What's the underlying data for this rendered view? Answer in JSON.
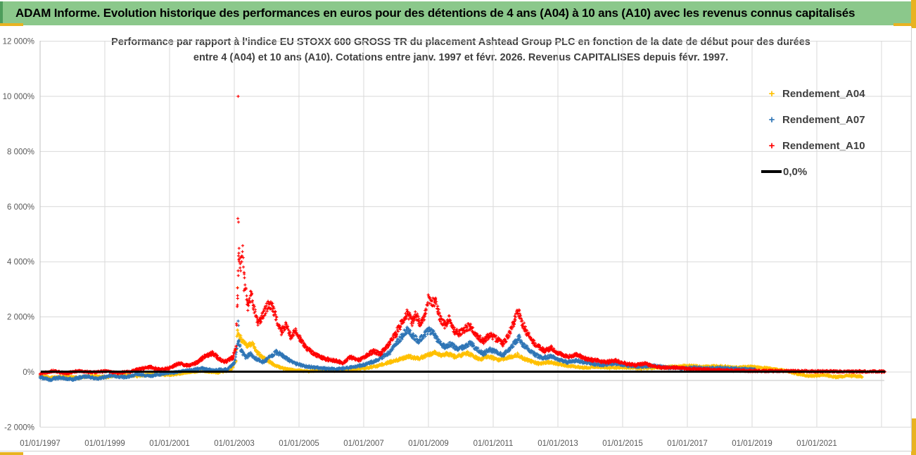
{
  "banner": {
    "text": "ADAM Informe. Evolution historique des performances en euros pour des détentions de 4 ans (A04) à 10 ans (A10) avec les revenus connus capitalisés"
  },
  "chart": {
    "title_line1": "Performance par rapport à l'indice EU STOXX 600 GROSS TR  du placement Ashtead Group PLC en fonction de la date de début pour des durées",
    "title_line2": "entre 4 (A04) et 10 ans (A10).  Cotations entre janv. 1997 et févr. 2026. Revenus CAPITALISES depuis févr. 1997.",
    "legend": {
      "items": [
        {
          "label": "Rendement_A04",
          "color": "#FFC000",
          "marker": "plus"
        },
        {
          "label": "Rendement_A07",
          "color": "#2E75B6",
          "marker": "plus"
        },
        {
          "label": "Rendement_A10",
          "color": "#FF0000",
          "marker": "plus"
        },
        {
          "label": "0,0%",
          "color": "#000000",
          "marker": "line"
        }
      ]
    },
    "colors": {
      "gridline": "#D9D9D9",
      "axis_line": "#BFBFBF",
      "axis_text": "#595959",
      "baseline": "#CFCFCF",
      "banner_green": "#8BC88B",
      "gold": "#E8B321"
    }
  },
  "chart_data": {
    "type": "scatter",
    "title": "Performance par rapport à l'indice EU STOXX 600 GROSS TR du placement Ashtead Group PLC en fonction de la date de début pour des durées entre 4 (A04) et 10 ans (A10). Cotations entre janv. 1997 et févr. 2026. Revenus CAPITALISES depuis févr. 1997.",
    "xlabel": "",
    "ylabel": "",
    "x_tick_years": [
      1997,
      1999,
      2001,
      2003,
      2005,
      2007,
      2009,
      2011,
      2013,
      2015,
      2017,
      2019,
      2021
    ],
    "x_tick_format": "01/01/YYYY",
    "unlabeled_x_gridline_years": [
      2023
    ],
    "y_ticks": [
      -2000,
      0,
      2000,
      4000,
      6000,
      8000,
      10000,
      12000
    ],
    "y_range": [
      -2000,
      12000
    ],
    "x_range": [
      1997.0,
      2023.92
    ],
    "grid": true,
    "legend_position": "right",
    "zero_line": {
      "label": "0,0%",
      "value": 0,
      "x_start": 1997.02,
      "x_end": 2023.12,
      "color": "#000000"
    },
    "series": [
      {
        "name": "Rendement_A04",
        "color": "#FFC000",
        "marker": "plus",
        "spread_base": 26,
        "spread_factor": 0.06,
        "seed": 11,
        "envelope": [
          [
            1997.0,
            -130
          ],
          [
            1997.4,
            -210
          ],
          [
            1997.8,
            -150
          ],
          [
            1998.2,
            -220
          ],
          [
            1998.6,
            -130
          ],
          [
            1999.0,
            -190
          ],
          [
            1999.5,
            -110
          ],
          [
            2000.0,
            -150
          ],
          [
            2000.5,
            -70
          ],
          [
            2001.0,
            -110
          ],
          [
            2001.5,
            -30
          ],
          [
            2002.0,
            40
          ],
          [
            2002.5,
            -20
          ],
          [
            2002.9,
            70
          ],
          [
            2003.05,
            420
          ],
          [
            2003.1,
            1520
          ],
          [
            2003.16,
            1300
          ],
          [
            2003.26,
            1120
          ],
          [
            2003.4,
            920
          ],
          [
            2003.55,
            1060
          ],
          [
            2003.7,
            720
          ],
          [
            2003.9,
            520
          ],
          [
            2004.1,
            360
          ],
          [
            2004.3,
            210
          ],
          [
            2004.6,
            110
          ],
          [
            2004.9,
            60
          ],
          [
            2005.3,
            30
          ],
          [
            2005.7,
            70
          ],
          [
            2006.1,
            50
          ],
          [
            2006.5,
            90
          ],
          [
            2007.0,
            130
          ],
          [
            2007.4,
            210
          ],
          [
            2007.8,
            360
          ],
          [
            2008.1,
            460
          ],
          [
            2008.4,
            560
          ],
          [
            2008.7,
            490
          ],
          [
            2009.0,
            630
          ],
          [
            2009.2,
            710
          ],
          [
            2009.4,
            610
          ],
          [
            2009.6,
            660
          ],
          [
            2009.8,
            560
          ],
          [
            2010.0,
            610
          ],
          [
            2010.2,
            690
          ],
          [
            2010.4,
            560
          ],
          [
            2010.6,
            460
          ],
          [
            2010.8,
            560
          ],
          [
            2011.0,
            510
          ],
          [
            2011.2,
            430
          ],
          [
            2011.4,
            510
          ],
          [
            2011.6,
            570
          ],
          [
            2011.75,
            630
          ],
          [
            2011.9,
            510
          ],
          [
            2012.1,
            410
          ],
          [
            2012.4,
            310
          ],
          [
            2012.7,
            360
          ],
          [
            2013.0,
            290
          ],
          [
            2013.4,
            210
          ],
          [
            2013.8,
            160
          ],
          [
            2014.2,
            190
          ],
          [
            2014.6,
            150
          ],
          [
            2015.0,
            170
          ],
          [
            2015.5,
            130
          ],
          [
            2016.0,
            160
          ],
          [
            2016.5,
            190
          ],
          [
            2017.0,
            230
          ],
          [
            2017.5,
            190
          ],
          [
            2018.0,
            210
          ],
          [
            2018.5,
            160
          ],
          [
            2019.0,
            190
          ],
          [
            2019.5,
            130
          ],
          [
            2020.0,
            60
          ],
          [
            2020.3,
            -40
          ],
          [
            2020.8,
            -150
          ],
          [
            2021.2,
            -100
          ],
          [
            2021.6,
            -180
          ],
          [
            2022.0,
            -140
          ],
          [
            2022.4,
            -160
          ]
        ],
        "outliers": [
          [
            2003.1,
            3060
          ]
        ]
      },
      {
        "name": "Rendement_A07",
        "color": "#2E75B6",
        "marker": "plus",
        "spread_base": 30,
        "spread_factor": 0.06,
        "seed": 22,
        "envelope": [
          [
            1997.0,
            -180
          ],
          [
            1997.3,
            -280
          ],
          [
            1997.6,
            -200
          ],
          [
            1998.0,
            -260
          ],
          [
            1998.4,
            -160
          ],
          [
            1998.8,
            -230
          ],
          [
            1999.2,
            -130
          ],
          [
            1999.6,
            -190
          ],
          [
            2000.0,
            -90
          ],
          [
            2000.4,
            -140
          ],
          [
            2000.8,
            -60
          ],
          [
            2001.2,
            -10
          ],
          [
            2001.6,
            70
          ],
          [
            2002.0,
            130
          ],
          [
            2002.4,
            60
          ],
          [
            2002.8,
            110
          ],
          [
            2003.0,
            320
          ],
          [
            2003.08,
            900
          ],
          [
            2003.14,
            1100
          ],
          [
            2003.2,
            800
          ],
          [
            2003.35,
            520
          ],
          [
            2003.5,
            660
          ],
          [
            2003.7,
            460
          ],
          [
            2003.9,
            360
          ],
          [
            2004.1,
            560
          ],
          [
            2004.3,
            720
          ],
          [
            2004.5,
            600
          ],
          [
            2004.7,
            420
          ],
          [
            2004.9,
            310
          ],
          [
            2005.2,
            210
          ],
          [
            2005.5,
            160
          ],
          [
            2005.8,
            130
          ],
          [
            2006.2,
            110
          ],
          [
            2006.6,
            160
          ],
          [
            2007.0,
            260
          ],
          [
            2007.4,
            420
          ],
          [
            2007.8,
            720
          ],
          [
            2008.0,
            1020
          ],
          [
            2008.2,
            1320
          ],
          [
            2008.35,
            1560
          ],
          [
            2008.5,
            1320
          ],
          [
            2008.7,
            1120
          ],
          [
            2008.9,
            1380
          ],
          [
            2009.0,
            1520
          ],
          [
            2009.15,
            1420
          ],
          [
            2009.3,
            1120
          ],
          [
            2009.5,
            920
          ],
          [
            2009.7,
            1020
          ],
          [
            2009.9,
            820
          ],
          [
            2010.1,
            920
          ],
          [
            2010.3,
            1060
          ],
          [
            2010.5,
            820
          ],
          [
            2010.7,
            660
          ],
          [
            2010.9,
            820
          ],
          [
            2011.1,
            720
          ],
          [
            2011.3,
            610
          ],
          [
            2011.5,
            820
          ],
          [
            2011.7,
            1120
          ],
          [
            2011.8,
            1260
          ],
          [
            2011.9,
            1020
          ],
          [
            2012.1,
            820
          ],
          [
            2012.3,
            620
          ],
          [
            2012.5,
            510
          ],
          [
            2012.8,
            560
          ],
          [
            2013.0,
            460
          ],
          [
            2013.3,
            360
          ],
          [
            2013.6,
            410
          ],
          [
            2014.0,
            310
          ],
          [
            2014.4,
            260
          ],
          [
            2014.8,
            310
          ],
          [
            2015.2,
            230
          ],
          [
            2015.6,
            190
          ],
          [
            2016.0,
            230
          ],
          [
            2016.4,
            160
          ],
          [
            2016.8,
            130
          ],
          [
            2017.2,
            160
          ],
          [
            2017.6,
            130
          ],
          [
            2018.0,
            155
          ],
          [
            2018.4,
            125
          ],
          [
            2018.8,
            105
          ],
          [
            2019.1,
            95
          ]
        ],
        "outliers": [
          [
            2003.12,
            1850
          ],
          [
            2003.13,
            1690
          ]
        ]
      },
      {
        "name": "Rendement_A10",
        "color": "#FF0000",
        "marker": "plus",
        "spread_base": 32,
        "spread_factor": 0.06,
        "seed": 33,
        "envelope": [
          [
            1997.0,
            -60
          ],
          [
            1997.4,
            40
          ],
          [
            1997.8,
            -50
          ],
          [
            1998.2,
            50
          ],
          [
            1998.6,
            -20
          ],
          [
            1999.0,
            30
          ],
          [
            1999.4,
            -40
          ],
          [
            1999.8,
            20
          ],
          [
            2000.1,
            120
          ],
          [
            2000.4,
            180
          ],
          [
            2000.7,
            90
          ],
          [
            2001.0,
            140
          ],
          [
            2001.3,
            320
          ],
          [
            2001.6,
            220
          ],
          [
            2001.9,
            380
          ],
          [
            2002.1,
            600
          ],
          [
            2002.35,
            680
          ],
          [
            2002.55,
            450
          ],
          [
            2002.75,
            380
          ],
          [
            2002.95,
            520
          ],
          [
            2003.05,
            1000
          ],
          [
            2003.1,
            2800
          ],
          [
            2003.14,
            4300
          ],
          [
            2003.2,
            3900
          ],
          [
            2003.26,
            4350
          ],
          [
            2003.32,
            3200
          ],
          [
            2003.42,
            2400
          ],
          [
            2003.52,
            2850
          ],
          [
            2003.62,
            2250
          ],
          [
            2003.75,
            1750
          ],
          [
            2003.88,
            2050
          ],
          [
            2003.98,
            2300
          ],
          [
            2004.08,
            2450
          ],
          [
            2004.18,
            2350
          ],
          [
            2004.32,
            1900
          ],
          [
            2004.45,
            1450
          ],
          [
            2004.6,
            1700
          ],
          [
            2004.75,
            1300
          ],
          [
            2004.9,
            1500
          ],
          [
            2005.05,
            1150
          ],
          [
            2005.25,
            850
          ],
          [
            2005.45,
            680
          ],
          [
            2005.65,
            540
          ],
          [
            2005.85,
            460
          ],
          [
            2006.1,
            420
          ],
          [
            2006.35,
            330
          ],
          [
            2006.6,
            540
          ],
          [
            2006.85,
            420
          ],
          [
            2007.1,
            600
          ],
          [
            2007.3,
            760
          ],
          [
            2007.5,
            650
          ],
          [
            2007.75,
            980
          ],
          [
            2008.0,
            1400
          ],
          [
            2008.2,
            1850
          ],
          [
            2008.35,
            2150
          ],
          [
            2008.5,
            1800
          ],
          [
            2008.6,
            2100
          ],
          [
            2008.75,
            1750
          ],
          [
            2008.9,
            2100
          ],
          [
            2009.0,
            2700
          ],
          [
            2009.1,
            2450
          ],
          [
            2009.2,
            2600
          ],
          [
            2009.35,
            2000
          ],
          [
            2009.5,
            1700
          ],
          [
            2009.65,
            1950
          ],
          [
            2009.8,
            1500
          ],
          [
            2009.95,
            1400
          ],
          [
            2010.1,
            1550
          ],
          [
            2010.3,
            1680
          ],
          [
            2010.5,
            1300
          ],
          [
            2010.7,
            1120
          ],
          [
            2010.9,
            1350
          ],
          [
            2011.1,
            1200
          ],
          [
            2011.3,
            1020
          ],
          [
            2011.5,
            1380
          ],
          [
            2011.65,
            1800
          ],
          [
            2011.75,
            2250
          ],
          [
            2011.85,
            1950
          ],
          [
            2012.0,
            1500
          ],
          [
            2012.2,
            1120
          ],
          [
            2012.4,
            920
          ],
          [
            2012.6,
            760
          ],
          [
            2012.8,
            880
          ],
          [
            2013.0,
            700
          ],
          [
            2013.3,
            560
          ],
          [
            2013.6,
            620
          ],
          [
            2013.9,
            460
          ],
          [
            2014.2,
            420
          ],
          [
            2014.5,
            360
          ],
          [
            2014.8,
            420
          ],
          [
            2015.1,
            300
          ],
          [
            2015.4,
            250
          ],
          [
            2015.7,
            300
          ],
          [
            2016.0,
            200
          ],
          [
            2016.3,
            150
          ],
          [
            2016.6,
            170
          ],
          [
            2016.9,
            130
          ],
          [
            2017.2,
            110
          ],
          [
            2017.6,
            90
          ],
          [
            2018.0,
            70
          ],
          [
            2018.5,
            55
          ],
          [
            2019.0,
            45
          ],
          [
            2019.5,
            40
          ],
          [
            2020.0,
            35
          ],
          [
            2021.0,
            28
          ],
          [
            2022.0,
            22
          ],
          [
            2023.1,
            20
          ]
        ],
        "outliers": [
          [
            2003.12,
            10000
          ],
          [
            2003.11,
            5570
          ],
          [
            2003.13,
            5440
          ],
          [
            2003.1,
            3050
          ],
          [
            2003.3,
            2950
          ]
        ]
      }
    ]
  }
}
